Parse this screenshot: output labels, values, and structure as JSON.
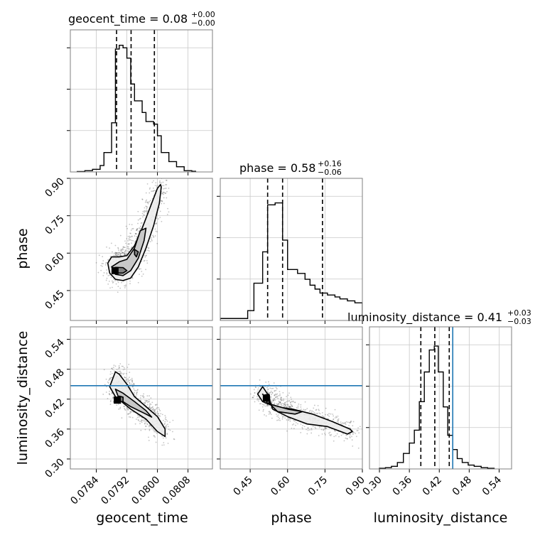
{
  "chart_data": {
    "type": "corner",
    "parameters": [
      "geocent_time",
      "phase",
      "luminosity_distance"
    ],
    "colors": {
      "hist": "#000000",
      "truth": "#1f77b4",
      "points": "#555555",
      "contour_fill": "#8c8c8c"
    },
    "grid": true,
    "panels": {
      "geocent_time": {
        "title": "geocent_time = 0.08",
        "title_sup": "+0.00",
        "title_sub": "−0.00",
        "xlim": [
          0.07772,
          0.08144
        ],
        "ticks": [
          0.0784,
          0.0792,
          0.08,
          0.0808
        ],
        "tick_labels": [
          "0.0784",
          "0.0792",
          "0.0800",
          "0.0808"
        ],
        "quantiles": [
          0.07893,
          0.07931,
          0.07992
        ],
        "hist_edges": [
          0.0779,
          0.0781,
          0.0783,
          0.0785,
          0.0786,
          0.0788,
          0.0789,
          0.079,
          0.0791,
          0.0792,
          0.0793,
          0.0794,
          0.0796,
          0.0797,
          0.0799,
          0.08,
          0.0801,
          0.0803,
          0.0805,
          0.0807,
          0.0809,
          0.081
        ],
        "hist_counts": [
          0.3,
          1,
          2,
          5,
          15,
          38,
          95,
          98,
          96,
          88,
          68,
          55,
          46,
          39,
          37,
          28,
          15,
          8,
          4,
          1,
          0.5
        ],
        "hist_max": 100
      },
      "phase": {
        "title": "phase = 0.58",
        "title_sup": "+0.16",
        "title_sub": "−0.06",
        "xlim": [
          0.33,
          0.9
        ],
        "ylim": [
          0.33,
          0.9
        ],
        "ticks": [
          0.45,
          0.6,
          0.75,
          0.9
        ],
        "tick_labels": [
          "0.45",
          "0.60",
          "0.75",
          "0.90"
        ],
        "quantiles": [
          0.52,
          0.58,
          0.74
        ],
        "hist_edges": [
          0.33,
          0.44,
          0.465,
          0.5,
          0.52,
          0.55,
          0.58,
          0.6,
          0.64,
          0.67,
          0.69,
          0.71,
          0.73,
          0.76,
          0.79,
          0.81,
          0.84,
          0.87,
          0.9
        ],
        "hist_counts": [
          1,
          5,
          19,
          35,
          59,
          60,
          41,
          26,
          24,
          21,
          18,
          16,
          14,
          13,
          12,
          11,
          10,
          9
        ],
        "hist_max": 66
      },
      "luminosity_distance": {
        "title": "luminosity_distance = 0.41",
        "title_sup": "+0.03",
        "title_sub": "−0.03",
        "xlim": [
          0.28,
          0.565
        ],
        "ylim": [
          0.28,
          0.565
        ],
        "ticks": [
          0.3,
          0.36,
          0.42,
          0.48,
          0.54
        ],
        "tick_labels": [
          "0.30",
          "0.36",
          "0.42",
          "0.48",
          "0.54"
        ],
        "quantiles": [
          0.383,
          0.411,
          0.44
        ],
        "truth": 0.447,
        "hist_edges": [
          0.3,
          0.312,
          0.324,
          0.336,
          0.348,
          0.36,
          0.37,
          0.38,
          0.39,
          0.4,
          0.41,
          0.418,
          0.428,
          0.437,
          0.447,
          0.456,
          0.466,
          0.478,
          0.49,
          0.504,
          0.517,
          0.53
        ],
        "hist_counts": [
          0.5,
          1,
          2,
          5,
          12,
          20,
          30,
          52,
          75,
          92,
          95,
          75,
          48,
          26,
          15,
          8,
          5,
          3,
          2,
          1,
          0.5
        ],
        "hist_max": 100
      }
    },
    "scatter_pairs": [
      {
        "x": "geocent_time",
        "y": "phase",
        "contours": [
          {
            "fill": "#ececec",
            "pts": [
              [
                0.0787,
                0.56
              ],
              [
                0.07875,
                0.52
              ],
              [
                0.0789,
                0.495
              ],
              [
                0.0791,
                0.49
              ],
              [
                0.0793,
                0.5
              ],
              [
                0.0795,
                0.545
              ],
              [
                0.0797,
                0.62
              ],
              [
                0.0799,
                0.71
              ],
              [
                0.08005,
                0.8
              ],
              [
                0.0801,
                0.865
              ],
              [
                0.08008,
                0.875
              ],
              [
                0.08,
                0.86
              ],
              [
                0.0798,
                0.78
              ],
              [
                0.0796,
                0.7
              ],
              [
                0.0794,
                0.63
              ],
              [
                0.0792,
                0.59
              ],
              [
                0.079,
                0.585
              ],
              [
                0.0788,
                0.585
              ]
            ]
          },
          {
            "fill": "#c4c4c4",
            "pts": [
              [
                0.0788,
                0.545
              ],
              [
                0.0789,
                0.515
              ],
              [
                0.0791,
                0.51
              ],
              [
                0.0793,
                0.53
              ],
              [
                0.0795,
                0.58
              ],
              [
                0.07965,
                0.65
              ],
              [
                0.0797,
                0.7
              ],
              [
                0.07955,
                0.69
              ],
              [
                0.0794,
                0.62
              ],
              [
                0.0792,
                0.575
              ],
              [
                0.079,
                0.565
              ]
            ]
          },
          {
            "fill": "#7a7a7a",
            "pts": [
              [
                0.07885,
                0.535
              ],
              [
                0.0789,
                0.52
              ],
              [
                0.0791,
                0.52
              ],
              [
                0.0792,
                0.53
              ],
              [
                0.0791,
                0.542
              ],
              [
                0.0789,
                0.543
              ]
            ]
          },
          {
            "fill": "#7a7a7a",
            "pts": [
              [
                0.0794,
                0.595
              ],
              [
                0.07945,
                0.585
              ],
              [
                0.0795,
                0.605
              ],
              [
                0.0794,
                0.615
              ]
            ]
          }
        ],
        "peak": [
          0.07889,
          0.53
        ],
        "truth_x": null,
        "truth_y": null
      },
      {
        "x": "geocent_time",
        "y": "luminosity_distance",
        "contours": [
          {
            "fill": "#ececec",
            "pts": [
              [
                0.0789,
                0.475
              ],
              [
                0.07875,
                0.445
              ],
              [
                0.0789,
                0.425
              ],
              [
                0.0793,
                0.4
              ],
              [
                0.0797,
                0.38
              ],
              [
                0.08,
                0.355
              ],
              [
                0.0802,
                0.345
              ],
              [
                0.0802,
                0.36
              ],
              [
                0.08,
                0.385
              ],
              [
                0.0797,
                0.405
              ],
              [
                0.0794,
                0.425
              ],
              [
                0.0792,
                0.45
              ],
              [
                0.079,
                0.47
              ]
            ]
          },
          {
            "fill": "#c4c4c4",
            "pts": [
              [
                0.0789,
                0.44
              ],
              [
                0.079,
                0.42
              ],
              [
                0.0793,
                0.405
              ],
              [
                0.0797,
                0.39
              ],
              [
                0.07985,
                0.384
              ],
              [
                0.0797,
                0.397
              ],
              [
                0.0794,
                0.415
              ],
              [
                0.0791,
                0.432
              ]
            ]
          },
          {
            "fill": "#7a7a7a",
            "pts": [
              [
                0.0789,
                0.422
              ],
              [
                0.079,
                0.415
              ],
              [
                0.0791,
                0.415
              ],
              [
                0.0791,
                0.424
              ],
              [
                0.079,
                0.426
              ]
            ]
          }
        ],
        "peak": [
          0.07895,
          0.418
        ],
        "truth_x": null,
        "truth_y": 0.447
      },
      {
        "x": "phase",
        "y": "luminosity_distance",
        "contours": [
          {
            "fill": "#ececec",
            "pts": [
              [
                0.48,
                0.43
              ],
              [
                0.5,
                0.415
              ],
              [
                0.55,
                0.405
              ],
              [
                0.62,
                0.4
              ],
              [
                0.7,
                0.39
              ],
              [
                0.78,
                0.375
              ],
              [
                0.85,
                0.36
              ],
              [
                0.86,
                0.355
              ],
              [
                0.84,
                0.35
              ],
              [
                0.76,
                0.365
              ],
              [
                0.68,
                0.37
              ],
              [
                0.6,
                0.385
              ],
              [
                0.54,
                0.4
              ],
              [
                0.52,
                0.43
              ],
              [
                0.5,
                0.445
              ]
            ]
          },
          {
            "fill": "#c4c4c4",
            "pts": [
              [
                0.5,
                0.43
              ],
              [
                0.53,
                0.41
              ],
              [
                0.6,
                0.4
              ],
              [
                0.66,
                0.395
              ],
              [
                0.63,
                0.39
              ],
              [
                0.56,
                0.395
              ],
              [
                0.52,
                0.415
              ]
            ]
          },
          {
            "fill": "#7a7a7a",
            "pts": [
              [
                0.505,
                0.428
              ],
              [
                0.52,
                0.41
              ],
              [
                0.53,
                0.415
              ],
              [
                0.525,
                0.43
              ]
            ]
          }
        ],
        "peak": [
          0.515,
          0.422
        ],
        "truth_x": null,
        "truth_y": 0.447
      }
    ]
  }
}
